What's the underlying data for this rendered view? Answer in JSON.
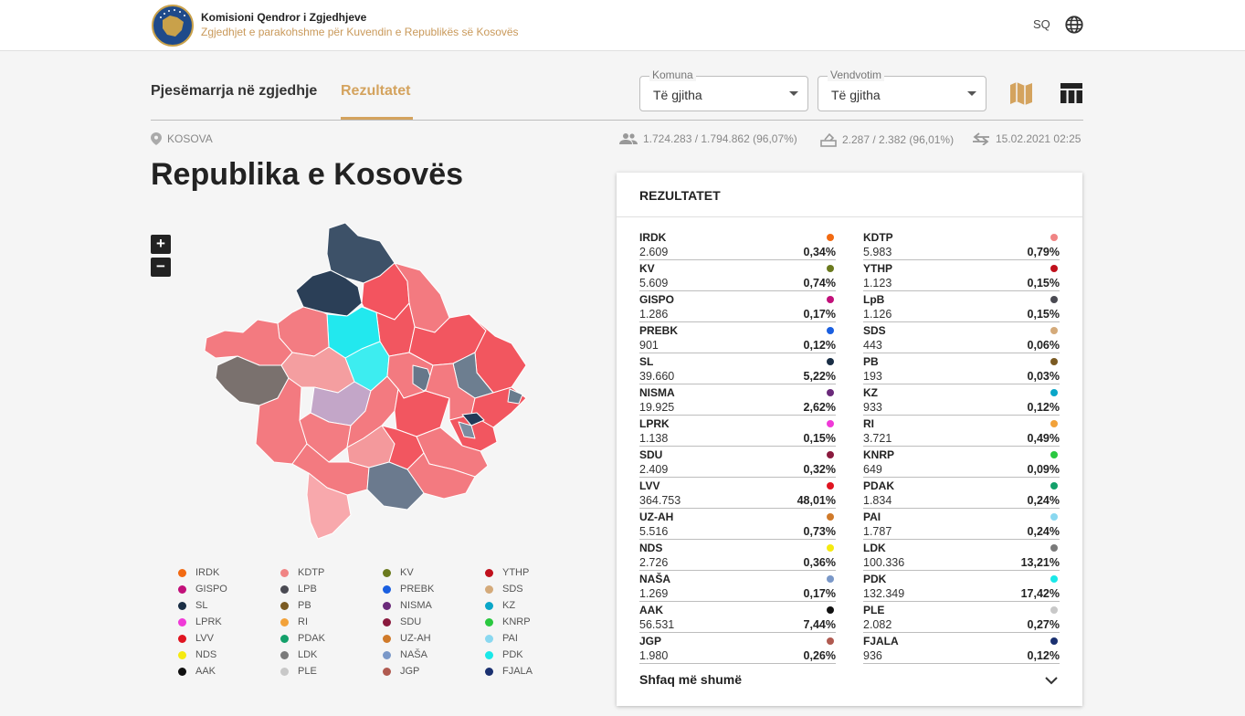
{
  "header": {
    "org_name": "Komisioni Qendror i Zgjedhjeve",
    "subtitle": "Zgjedhjet e parakohshme për Kuvendin e Republikës së Kosovës",
    "language": "SQ"
  },
  "tabs": [
    {
      "label": "Pjesëmarrja në zgjedhje",
      "active": false
    },
    {
      "label": "Rezultatet",
      "active": true
    }
  ],
  "filters": {
    "komuna": {
      "label": "Komuna",
      "value": "Të gjitha"
    },
    "vendvotim": {
      "label": "Vendvotim",
      "value": "Të gjitha"
    }
  },
  "info": {
    "location": "KOSOVA",
    "voters": "1.724.283 / 1.794.862 (96,07%)",
    "stations": "2.287 / 2.382 (96,01%)",
    "updated": "15.02.2021 02:25"
  },
  "page_title": "Republika e Kosovës",
  "zoom": {
    "in": "+",
    "out": "−"
  },
  "results": {
    "title": "REZULTATET",
    "show_more": "Shfaq më shumë",
    "parties": [
      {
        "name": "IRDK",
        "votes": "2.609",
        "percent": "0,34%",
        "color": "#f26a12"
      },
      {
        "name": "KDTP",
        "votes": "5.983",
        "percent": "0,79%",
        "color": "#f08484"
      },
      {
        "name": "KV",
        "votes": "5.609",
        "percent": "0,74%",
        "color": "#6b7a1e"
      },
      {
        "name": "YTHP",
        "votes": "1.123",
        "percent": "0,15%",
        "color": "#c0101c"
      },
      {
        "name": "GISPO",
        "votes": "1.286",
        "percent": "0,17%",
        "color": "#c2107a"
      },
      {
        "name": "LpB",
        "votes": "1.126",
        "percent": "0,15%",
        "color": "#4a4a52"
      },
      {
        "name": "PREBK",
        "votes": "901",
        "percent": "0,12%",
        "color": "#1a5fe0"
      },
      {
        "name": "SDS",
        "votes": "443",
        "percent": "0,06%",
        "color": "#d4aa7a"
      },
      {
        "name": "SL",
        "votes": "39.660",
        "percent": "5,22%",
        "color": "#1a2e45"
      },
      {
        "name": "PB",
        "votes": "193",
        "percent": "0,03%",
        "color": "#7a5a22"
      },
      {
        "name": "NISMA",
        "votes": "19.925",
        "percent": "2,62%",
        "color": "#6a2a7a"
      },
      {
        "name": "KZ",
        "votes": "933",
        "percent": "0,12%",
        "color": "#0aa6c8"
      },
      {
        "name": "LPRK",
        "votes": "1.138",
        "percent": "0,15%",
        "color": "#f03ad8"
      },
      {
        "name": "RI",
        "votes": "3.721",
        "percent": "0,49%",
        "color": "#f2a23a"
      },
      {
        "name": "SDU",
        "votes": "2.409",
        "percent": "0,32%",
        "color": "#8a1a3e"
      },
      {
        "name": "KNRP",
        "votes": "649",
        "percent": "0,09%",
        "color": "#2ac840"
      },
      {
        "name": "LVV",
        "votes": "364.753",
        "percent": "48,01%",
        "color": "#e01420"
      },
      {
        "name": "PDAK",
        "votes": "1.834",
        "percent": "0,24%",
        "color": "#13a06a"
      },
      {
        "name": "UZ-AH",
        "votes": "5.516",
        "percent": "0,73%",
        "color": "#d07a2a"
      },
      {
        "name": "PAI",
        "votes": "1.787",
        "percent": "0,24%",
        "color": "#8ad8f0"
      },
      {
        "name": "NDS",
        "votes": "2.726",
        "percent": "0,36%",
        "color": "#f5ea10"
      },
      {
        "name": "LDK",
        "votes": "100.336",
        "percent": "13,21%",
        "color": "#7a7a7a"
      },
      {
        "name": "NAŠA",
        "votes": "1.269",
        "percent": "0,17%",
        "color": "#7a98c8"
      },
      {
        "name": "PDK",
        "votes": "132.349",
        "percent": "17,42%",
        "color": "#1ae8e8"
      },
      {
        "name": "AAK",
        "votes": "56.531",
        "percent": "7,44%",
        "color": "#111111"
      },
      {
        "name": "PLE",
        "votes": "2.082",
        "percent": "0,27%",
        "color": "#c8c8c8"
      },
      {
        "name": "JGP",
        "votes": "1.980",
        "percent": "0,26%",
        "color": "#b05a50"
      },
      {
        "name": "FJALA",
        "votes": "936",
        "percent": "0,12%",
        "color": "#1a3070"
      }
    ]
  },
  "legend": [
    {
      "name": "IRDK",
      "color": "#f26a12"
    },
    {
      "name": "KDTP",
      "color": "#f08484"
    },
    {
      "name": "KV",
      "color": "#6b7a1e"
    },
    {
      "name": "YTHP",
      "color": "#c0101c"
    },
    {
      "name": "GISPO",
      "color": "#c2107a"
    },
    {
      "name": "LPB",
      "color": "#4a4a52"
    },
    {
      "name": "PREBK",
      "color": "#1a5fe0"
    },
    {
      "name": "SDS",
      "color": "#d4aa7a"
    },
    {
      "name": "SL",
      "color": "#1a2e45"
    },
    {
      "name": "PB",
      "color": "#7a5a22"
    },
    {
      "name": "NISMA",
      "color": "#6a2a7a"
    },
    {
      "name": "KZ",
      "color": "#0aa6c8"
    },
    {
      "name": "LPRK",
      "color": "#f03ad8"
    },
    {
      "name": "RI",
      "color": "#f2a23a"
    },
    {
      "name": "SDU",
      "color": "#8a1a3e"
    },
    {
      "name": "KNRP",
      "color": "#2ac840"
    },
    {
      "name": "LVV",
      "color": "#e01420"
    },
    {
      "name": "PDAK",
      "color": "#13a06a"
    },
    {
      "name": "UZ-AH",
      "color": "#d07a2a"
    },
    {
      "name": "PAI",
      "color": "#8ad8f0"
    },
    {
      "name": "NDS",
      "color": "#f5ea10"
    },
    {
      "name": "LDK",
      "color": "#7a7a7a"
    },
    {
      "name": "NAŠA",
      "color": "#7a98c8"
    },
    {
      "name": "PDK",
      "color": "#1ae8e8"
    },
    {
      "name": "AAK",
      "color": "#111111"
    },
    {
      "name": "PLE",
      "color": "#c8c8c8"
    },
    {
      "name": "JGP",
      "color": "#b05a50"
    },
    {
      "name": "FJALA",
      "color": "#1a3070"
    }
  ],
  "icons": {
    "logo": "kqz-logo",
    "language": "globe-icon",
    "map_view": "map-icon",
    "table_view": "table-icon",
    "location": "location-pin-icon",
    "voters": "people-icon",
    "stations": "ballot-box-icon",
    "updated": "sync-arrows-icon",
    "show_more": "chevron-down-icon"
  }
}
